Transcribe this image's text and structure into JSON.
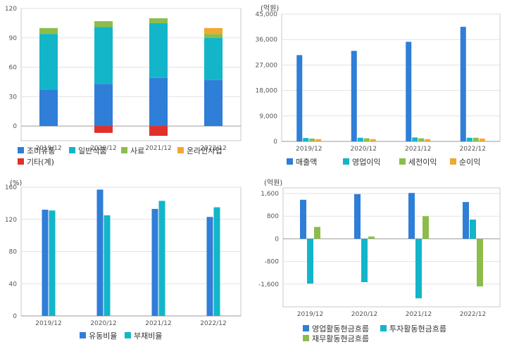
{
  "chart_data": [
    {
      "type": "bar",
      "stacked": true,
      "unit_label": "",
      "categories": [
        "2019/12",
        "2020/12",
        "2021/12",
        "2022/12"
      ],
      "series": [
        {
          "name": "조미유통",
          "color": "#2f7ed8",
          "values": [
            37,
            43,
            49,
            47
          ]
        },
        {
          "name": "일반식품",
          "color": "#13b5c9",
          "values": [
            57,
            58,
            56,
            43
          ]
        },
        {
          "name": "사료",
          "color": "#8cbd4a",
          "values": [
            6,
            6,
            5,
            4
          ]
        },
        {
          "name": "온라인사업",
          "color": "#f0a830",
          "values": [
            0,
            0,
            0,
            6
          ]
        },
        {
          "name": "기타(계)",
          "color": "#e0302a",
          "values": [
            0,
            -7,
            -10,
            0
          ]
        }
      ],
      "yticks": [
        0,
        30,
        60,
        90,
        120
      ],
      "ylim": [
        -15,
        120
      ],
      "grid": true,
      "legend_position": "bottom"
    },
    {
      "type": "bar",
      "unit_label": "(억원)",
      "categories": [
        "2019/12",
        "2020/12",
        "2021/12",
        "2022/12"
      ],
      "series": [
        {
          "name": "매출액",
          "color": "#2f7ed8",
          "values": [
            30500,
            32000,
            35200,
            40500
          ]
        },
        {
          "name": "영업이익",
          "color": "#13b5c9",
          "values": [
            1200,
            1300,
            1400,
            1300
          ]
        },
        {
          "name": "세전이익",
          "color": "#8cbd4a",
          "values": [
            1000,
            1100,
            1100,
            1300
          ]
        },
        {
          "name": "순이익",
          "color": "#f0a830",
          "values": [
            800,
            800,
            800,
            1000
          ]
        }
      ],
      "yticks": [
        "0",
        "9,000",
        "18,000",
        "27,000",
        "36,000",
        "45,000"
      ],
      "ylim": [
        0,
        45000
      ],
      "grid": true,
      "legend_position": "bottom"
    },
    {
      "type": "bar",
      "unit_label": "(%)",
      "categories": [
        "2019/12",
        "2020/12",
        "2021/12",
        "2022/12"
      ],
      "series": [
        {
          "name": "유동비율",
          "color": "#2f7ed8",
          "values": [
            132,
            157,
            133,
            123
          ]
        },
        {
          "name": "부채비율",
          "color": "#13b5c9",
          "values": [
            131,
            125,
            143,
            135
          ]
        }
      ],
      "yticks": [
        "0",
        "40",
        "80",
        "120",
        "160"
      ],
      "ylim": [
        0,
        160
      ],
      "grid": true,
      "legend_position": "bottom"
    },
    {
      "type": "bar",
      "unit_label": "(억원)",
      "categories": [
        "2019/12",
        "2020/12",
        "2021/12",
        "2022/12"
      ],
      "series": [
        {
          "name": "영업활동현금흐름",
          "color": "#2f7ed8",
          "values": [
            1380,
            1580,
            1620,
            1300
          ]
        },
        {
          "name": "투자활동현금흐름",
          "color": "#13b5c9",
          "values": [
            -1580,
            -1530,
            -2100,
            680
          ]
        },
        {
          "name": "재무활동현금흐름",
          "color": "#8cbd4a",
          "values": [
            420,
            80,
            800,
            -1680
          ]
        }
      ],
      "yticks": [
        "-1,600",
        "-800",
        "0",
        "800",
        "1,600"
      ],
      "ylim": [
        -2400,
        1800
      ],
      "grid": true,
      "legend_position": "bottom"
    }
  ]
}
